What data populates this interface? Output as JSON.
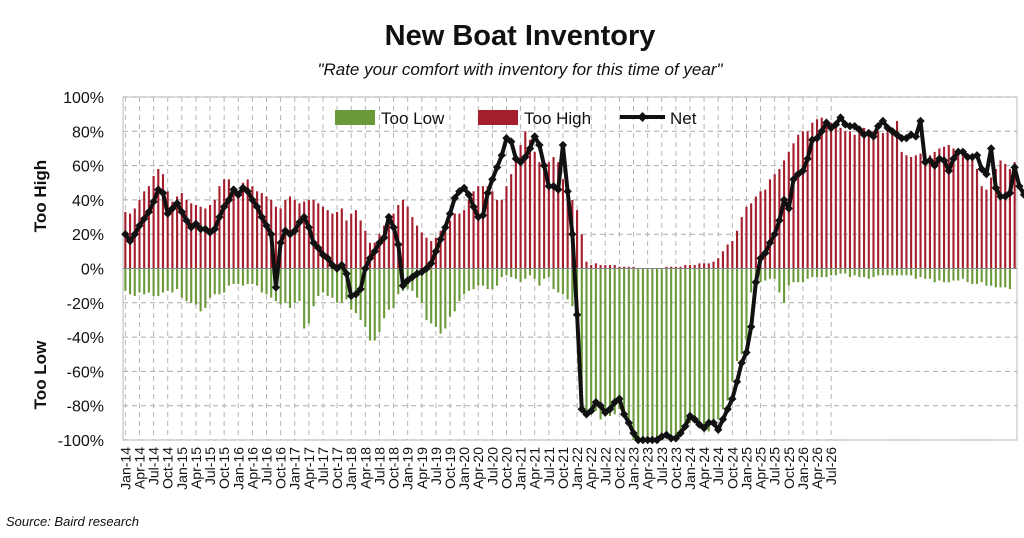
{
  "chart_data": {
    "type": "bar",
    "title": "New Boat Inventory",
    "subtitle": "\"Rate your comfort with inventory for this time of year\"",
    "ylabel_top": "Too High",
    "ylabel_bottom": "Too Low",
    "source": "Source: Baird research",
    "ylim": [
      -100,
      100
    ],
    "yticks": [
      "100%",
      "80%",
      "60%",
      "40%",
      "20%",
      "0%",
      "-20%",
      "-40%",
      "-60%",
      "-80%",
      "-100%"
    ],
    "ytick_values": [
      100,
      80,
      60,
      40,
      20,
      0,
      -20,
      -40,
      -60,
      -80,
      -100
    ],
    "xtick_labels": [
      "Jan-14",
      "Apr-14",
      "Jul-14",
      "Oct-14",
      "Jan-15",
      "Apr-15",
      "Jul-15",
      "Oct-15",
      "Jan-16",
      "Apr-16",
      "Jul-16",
      "Oct-16",
      "Jan-17",
      "Apr-17",
      "Jul-17",
      "Oct-17",
      "Jan-18",
      "Apr-18",
      "Jul-18",
      "Oct-18",
      "Jan-19",
      "Apr-19",
      "Jul-19",
      "Oct-19",
      "Jan-20",
      "Apr-20",
      "Jul-20",
      "Oct-20",
      "Jan-21",
      "Apr-21",
      "Jul-21",
      "Oct-21",
      "Jan-22",
      "Apr-22",
      "Jul-22",
      "Oct-22",
      "Jan-23",
      "Apr-23",
      "Jul-23",
      "Oct-23",
      "Jan-24",
      "Apr-24",
      "Jul-24",
      "Oct-24",
      "Jan-25",
      "Apr-25",
      "Jul-25",
      "Oct-25",
      "Jan-26",
      "Apr-26",
      "Jul-26"
    ],
    "grid": true,
    "legend_position": "top-center",
    "colors": {
      "too_low": "#6b9a3a",
      "too_high": "#a51e2e",
      "net": "#111111"
    },
    "series": [
      {
        "name": "Too Low",
        "type": "bar",
        "values": [
          -13,
          -15,
          -16,
          -14,
          -15,
          -14,
          -16,
          -16,
          -14,
          -13,
          -14,
          -12,
          -17,
          -19,
          -20,
          -21,
          -25,
          -23,
          -17,
          -15,
          -15,
          -14,
          -10,
          -9,
          -9,
          -10,
          -9,
          -9,
          -10,
          -14,
          -15,
          -17,
          -19,
          -21,
          -20,
          -23,
          -20,
          -19,
          -35,
          -32,
          -22,
          -16,
          -14,
          -16,
          -17,
          -20,
          -20,
          -18,
          -24,
          -26,
          -30,
          -34,
          -42,
          -42,
          -37,
          -29,
          -24,
          -23,
          -15,
          -13,
          -12,
          -13,
          -17,
          -20,
          -30,
          -32,
          -34,
          -38,
          -35,
          -28,
          -25,
          -19,
          -15,
          -13,
          -12,
          -10,
          -10,
          -12,
          -12,
          -10,
          -5,
          -4,
          -5,
          -6,
          -8,
          -6,
          -4,
          -6,
          -10,
          -6,
          -5,
          -12,
          -14,
          -15,
          -18,
          -22,
          -30,
          -82,
          -86,
          -85,
          -83,
          -88,
          -84,
          -86,
          -85,
          -82,
          -86,
          -88,
          -100,
          -100,
          -100,
          -100,
          -100,
          -100,
          -100,
          -99,
          -98,
          -97,
          -95,
          -92,
          -90,
          -89,
          -91,
          -93,
          -95,
          -92,
          -88,
          -82,
          -77,
          -66,
          -54,
          -50,
          -42,
          -14,
          -10,
          -8,
          -7,
          -6,
          -6,
          -14,
          -20,
          -10,
          -8,
          -8,
          -8,
          -6,
          -5,
          -5,
          -5,
          -5,
          -4,
          -4,
          -3,
          -3,
          -5,
          -4,
          -5,
          -5,
          -6,
          -5,
          -4,
          -4,
          -4,
          -4,
          -4,
          -4,
          -4,
          -4,
          -6,
          -5,
          -6,
          -6,
          -8,
          -7,
          -8,
          -8,
          -7,
          -7,
          -6,
          -8,
          -9,
          -9,
          -8,
          -10,
          -10,
          -11,
          -11,
          -11,
          -12
        ]
      },
      {
        "name": "Too High",
        "type": "bar",
        "values": [
          33,
          32,
          35,
          40,
          45,
          48,
          54,
          58,
          55,
          45,
          39,
          42,
          44,
          40,
          38,
          37,
          36,
          35,
          37,
          40,
          48,
          52,
          52,
          48,
          45,
          50,
          52,
          48,
          45,
          44,
          42,
          40,
          36,
          35,
          40,
          42,
          40,
          38,
          39,
          40,
          40,
          38,
          36,
          34,
          32,
          33,
          35,
          28,
          32,
          34,
          28,
          22,
          15,
          15,
          20,
          25,
          28,
          32,
          37,
          40,
          36,
          30,
          25,
          21,
          18,
          16,
          18,
          22,
          25,
          28,
          32,
          32,
          34,
          40,
          45,
          48,
          48,
          48,
          45,
          40,
          40,
          48,
          55,
          62,
          72,
          80,
          75,
          68,
          62,
          60,
          62,
          65,
          62,
          52,
          44,
          40,
          34,
          20,
          4,
          2,
          3,
          2,
          2,
          2,
          2,
          1,
          1,
          1,
          1,
          0,
          0,
          0,
          0,
          0,
          0,
          1,
          1,
          1,
          1,
          2,
          2,
          2,
          3,
          3,
          3,
          4,
          6,
          10,
          14,
          16,
          22,
          30,
          36,
          38,
          42,
          45,
          46,
          52,
          55,
          58,
          63,
          68,
          73,
          78,
          80,
          80,
          85,
          87,
          88,
          87,
          85,
          83,
          82,
          80,
          80,
          78,
          80,
          82,
          80,
          80,
          80,
          79,
          80,
          82,
          86,
          68,
          66,
          65,
          66,
          67,
          65,
          66,
          68,
          70,
          71,
          72,
          70,
          68,
          67,
          65,
          66,
          58,
          48,
          46,
          53,
          58,
          63,
          61,
          58,
          62
        ]
      },
      {
        "name": "Net",
        "type": "line",
        "values": [
          20,
          16,
          20,
          25,
          29,
          33,
          39,
          46,
          44,
          32,
          35,
          38,
          33,
          28,
          24,
          26,
          23,
          23,
          21,
          23,
          30,
          36,
          40,
          46,
          43,
          47,
          45,
          40,
          36,
          30,
          25,
          20,
          -11,
          15,
          22,
          20,
          22,
          27,
          30,
          24,
          15,
          12,
          8,
          6,
          2,
          0,
          2,
          -3,
          -16,
          -15,
          -12,
          0,
          6,
          10,
          15,
          18,
          30,
          24,
          14,
          -10,
          -7,
          -5,
          -3,
          -2,
          0,
          3,
          10,
          17,
          24,
          32,
          41,
          45,
          47,
          43,
          36,
          30,
          31,
          44,
          52,
          59,
          66,
          76,
          74,
          64,
          62,
          65,
          70,
          77,
          72,
          60,
          48,
          48,
          46,
          72,
          45,
          20,
          -27,
          -82,
          -85,
          -83,
          -78,
          -80,
          -84,
          -82,
          -78,
          -76,
          -85,
          -90,
          -96,
          -100,
          -100,
          -100,
          -100,
          -100,
          -98,
          -97,
          -99,
          -99,
          -96,
          -92,
          -86,
          -88,
          -91,
          -93,
          -90,
          -90,
          -94,
          -88,
          -82,
          -76,
          -66,
          -55,
          -49,
          -34,
          -8,
          6,
          9,
          15,
          20,
          28,
          40,
          35,
          52,
          55,
          57,
          64,
          75,
          76,
          80,
          85,
          82,
          84,
          88,
          84,
          83,
          83,
          81,
          78,
          79,
          77,
          83,
          86,
          82,
          80,
          78,
          76,
          76,
          78,
          77,
          86,
          62,
          63,
          60,
          64,
          63,
          57,
          64,
          68,
          68,
          65,
          65,
          66,
          58,
          55,
          70,
          47,
          42,
          42,
          44,
          59,
          48,
          43,
          52,
          52,
          53
        ]
      }
    ]
  }
}
